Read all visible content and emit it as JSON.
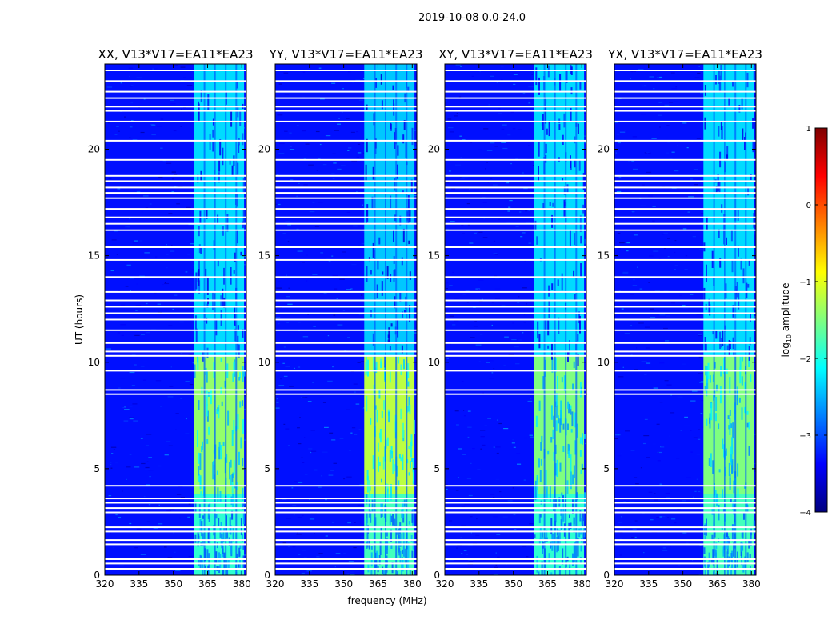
{
  "chart_data": {
    "type": "heatmap",
    "suptitle": "2019-10-08 0.0-24.0",
    "xlabel": "frequency (MHz)",
    "ylabel": "UT (hours)",
    "xlim": [
      320,
      382
    ],
    "ylim": [
      0,
      24
    ],
    "xticks": [
      320,
      335,
      350,
      365,
      380
    ],
    "yticks": [
      0,
      5,
      10,
      15,
      20
    ],
    "colorbar": {
      "label_prefix": "log",
      "label_sub": "10",
      "label_suffix": " amplitude",
      "range": [
        -4,
        1
      ],
      "ticks": [
        1,
        0,
        -1,
        -2,
        -3,
        -4
      ],
      "tick_labels": [
        "1",
        "0",
        "−1",
        "−2",
        "−3",
        "−4"
      ],
      "colormap": [
        "#00007f",
        "#0000ff",
        "#007fff",
        "#00ffff",
        "#7fff7f",
        "#ffff00",
        "#ff7f00",
        "#ff0000",
        "#7f0000"
      ]
    },
    "background_log_amplitude": -3.3,
    "signal_band_mhz": [
      359,
      381
    ],
    "channel_gaps_mhz": [
      [
        363.3,
        364.0
      ],
      [
        368.0,
        368.6
      ],
      [
        372.6,
        373.3
      ],
      [
        377.2,
        377.9
      ]
    ],
    "flagged_rows_ut_hours": [
      0.3,
      0.55,
      0.75,
      1.45,
      1.65,
      2.05,
      2.25,
      2.95,
      3.15,
      3.4,
      3.6,
      4.2,
      8.5,
      8.7,
      9.6,
      10.3,
      10.5,
      10.9,
      11.5,
      12.0,
      12.3,
      12.6,
      12.9,
      13.3,
      14.0,
      14.8,
      15.4,
      16.2,
      16.5,
      16.8,
      17.2,
      17.7,
      17.95,
      18.2,
      18.5,
      18.75,
      19.5,
      20.4,
      21.3,
      21.8,
      22.0,
      22.4,
      22.7,
      23.2,
      23.7
    ],
    "panels": [
      {
        "title": "XX, V13*V17=EA11*EA23",
        "show_ylabel": true,
        "show_xlabel": false,
        "band_segments": [
          {
            "ut_range": [
              0,
              3.8
            ],
            "log_amplitude": -1.9
          },
          {
            "ut_range": [
              3.8,
              10.3
            ],
            "log_amplitude": -1.4
          },
          {
            "ut_range": [
              10.3,
              24
            ],
            "log_amplitude": -2.3
          }
        ]
      },
      {
        "title": "YY, V13*V17=EA11*EA23",
        "show_ylabel": false,
        "show_xlabel": true,
        "band_segments": [
          {
            "ut_range": [
              0,
              3.8
            ],
            "log_amplitude": -1.8
          },
          {
            "ut_range": [
              3.8,
              10.3
            ],
            "log_amplitude": -1.2
          },
          {
            "ut_range": [
              10.3,
              24
            ],
            "log_amplitude": -2.4
          }
        ]
      },
      {
        "title": "XY, V13*V17=EA11*EA23",
        "show_ylabel": false,
        "show_xlabel": false,
        "band_segments": [
          {
            "ut_range": [
              0,
              3.8
            ],
            "log_amplitude": -1.9
          },
          {
            "ut_range": [
              3.8,
              10.3
            ],
            "log_amplitude": -1.5
          },
          {
            "ut_range": [
              10.3,
              24
            ],
            "log_amplitude": -2.3
          }
        ]
      },
      {
        "title": "YX, V13*V17=EA11*EA23",
        "show_ylabel": false,
        "show_xlabel": false,
        "band_segments": [
          {
            "ut_range": [
              0,
              3.8
            ],
            "log_amplitude": -1.8
          },
          {
            "ut_range": [
              3.8,
              10.3
            ],
            "log_amplitude": -1.5
          },
          {
            "ut_range": [
              10.3,
              24
            ],
            "log_amplitude": -2.3
          }
        ]
      }
    ]
  }
}
